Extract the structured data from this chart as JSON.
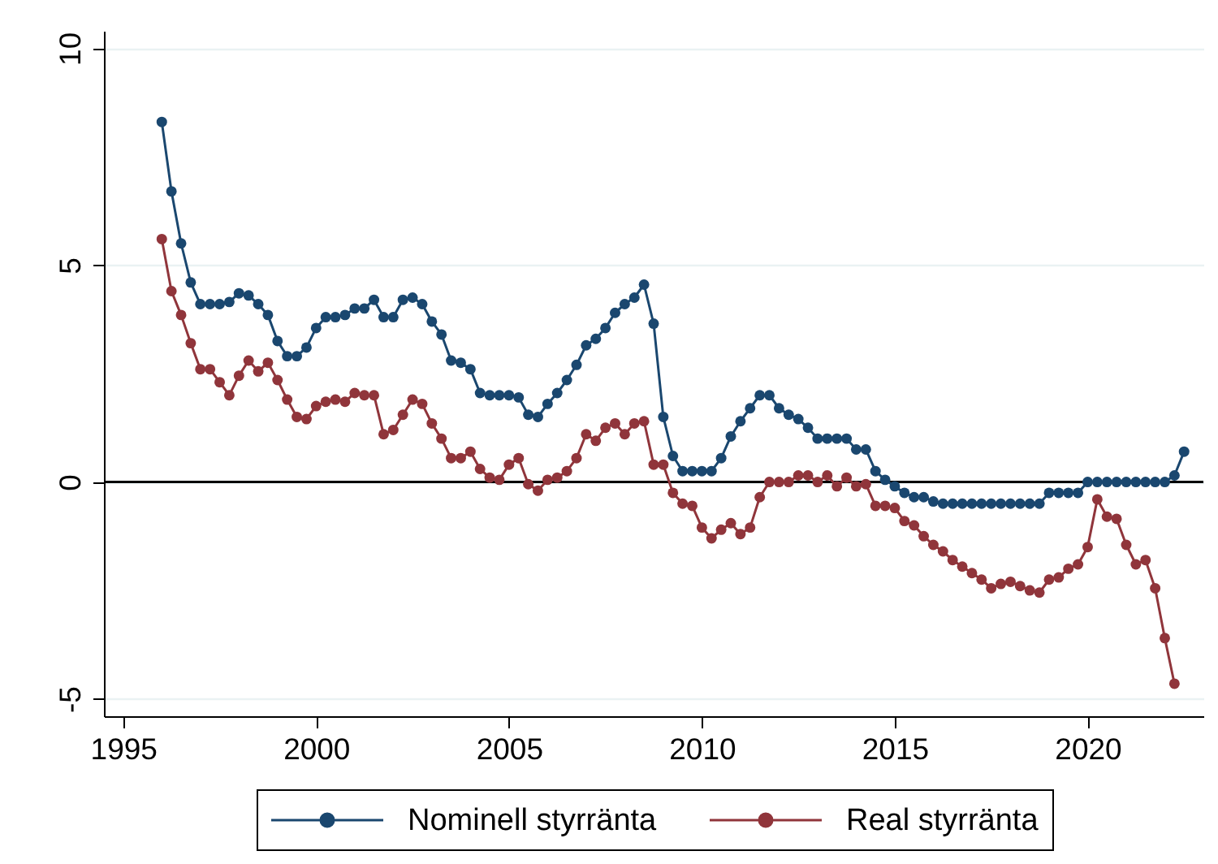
{
  "chart_data": {
    "type": "line",
    "x": [
      1996,
      1996.25,
      1996.5,
      1996.75,
      1997,
      1997.25,
      1997.5,
      1997.75,
      1998,
      1998.25,
      1998.5,
      1998.75,
      1999,
      1999.25,
      1999.5,
      1999.75,
      2000,
      2000.25,
      2000.5,
      2000.75,
      2001,
      2001.25,
      2001.5,
      2001.75,
      2002,
      2002.25,
      2002.5,
      2002.75,
      2003,
      2003.25,
      2003.5,
      2003.75,
      2004,
      2004.25,
      2004.5,
      2004.75,
      2005,
      2005.25,
      2005.5,
      2005.75,
      2006,
      2006.25,
      2006.5,
      2006.75,
      2007,
      2007.25,
      2007.5,
      2007.75,
      2008,
      2008.25,
      2008.5,
      2008.75,
      2009,
      2009.25,
      2009.5,
      2009.75,
      2010,
      2010.25,
      2010.5,
      2010.75,
      2011,
      2011.25,
      2011.5,
      2011.75,
      2012,
      2012.25,
      2012.5,
      2012.75,
      2013,
      2013.25,
      2013.5,
      2013.75,
      2014,
      2014.25,
      2014.5,
      2014.75,
      2015,
      2015.25,
      2015.5,
      2015.75,
      2016,
      2016.25,
      2016.5,
      2016.75,
      2017,
      2017.25,
      2017.5,
      2017.75,
      2018,
      2018.25,
      2018.5,
      2018.75,
      2019,
      2019.25,
      2019.5,
      2019.75,
      2020,
      2020.25,
      2020.5,
      2020.75,
      2021,
      2021.25,
      2021.5,
      2021.75,
      2022,
      2022.25,
      2022.5
    ],
    "series": [
      {
        "name": "Nominell styrränta",
        "color": "#1a476f",
        "values": [
          8.3,
          6.7,
          5.5,
          4.6,
          4.1,
          4.1,
          4.1,
          4.15,
          4.35,
          4.3,
          4.1,
          3.85,
          3.25,
          2.9,
          2.9,
          3.1,
          3.55,
          3.8,
          3.8,
          3.85,
          4.0,
          4.0,
          4.2,
          3.8,
          3.8,
          4.2,
          4.25,
          4.1,
          3.7,
          3.4,
          2.8,
          2.75,
          2.6,
          2.05,
          2.0,
          2.0,
          2.0,
          1.95,
          1.55,
          1.5,
          1.8,
          2.05,
          2.35,
          2.7,
          3.15,
          3.3,
          3.55,
          3.9,
          4.1,
          4.25,
          4.55,
          3.65,
          1.5,
          0.6,
          0.25,
          0.25,
          0.25,
          0.25,
          0.55,
          1.05,
          1.4,
          1.7,
          2.0,
          2.0,
          1.7,
          1.55,
          1.45,
          1.25,
          1.0,
          1.0,
          1.0,
          1.0,
          0.75,
          0.75,
          0.25,
          0.05,
          -0.1,
          -0.25,
          -0.35,
          -0.35,
          -0.45,
          -0.5,
          -0.5,
          -0.5,
          -0.5,
          -0.5,
          -0.5,
          -0.5,
          -0.5,
          -0.5,
          -0.5,
          -0.5,
          -0.25,
          -0.25,
          -0.25,
          -0.25,
          0,
          0,
          0,
          0,
          0,
          0,
          0,
          0,
          0,
          0.15,
          0.7
        ]
      },
      {
        "name": "Real styrränta",
        "color": "#90353b",
        "values": [
          5.6,
          4.4,
          3.85,
          3.2,
          2.6,
          2.6,
          2.3,
          2.0,
          2.45,
          2.8,
          2.55,
          2.75,
          2.35,
          1.9,
          1.5,
          1.45,
          1.75,
          1.85,
          1.9,
          1.85,
          2.05,
          2.0,
          2.0,
          1.1,
          1.2,
          1.55,
          1.9,
          1.8,
          1.35,
          1.0,
          0.55,
          0.55,
          0.7,
          0.3,
          0.1,
          0.05,
          0.4,
          0.55,
          -0.05,
          -0.2,
          0.05,
          0.1,
          0.25,
          0.55,
          1.1,
          0.95,
          1.25,
          1.35,
          1.1,
          1.35,
          1.4,
          0.4,
          0.4,
          -0.25,
          -0.5,
          -0.55,
          -1.05,
          -1.3,
          -1.1,
          -0.95,
          -1.2,
          -1.05,
          -0.35,
          0,
          0,
          0,
          0.15,
          0.15,
          0,
          0.15,
          -0.1,
          0.1,
          -0.1,
          -0.05,
          -0.55,
          -0.55,
          -0.6,
          -0.9,
          -1.0,
          -1.25,
          -1.45,
          -1.6,
          -1.8,
          -1.95,
          -2.1,
          -2.25,
          -2.45,
          -2.35,
          -2.3,
          -2.4,
          -2.5,
          -2.55,
          -2.25,
          -2.2,
          -2.0,
          -1.9,
          -1.5,
          -0.4,
          -0.8,
          -0.85,
          -1.45,
          -1.9,
          -1.8,
          -2.45,
          -3.6,
          -4.65,
          null
        ]
      }
    ],
    "xlim": [
      1994.5,
      2023
    ],
    "xticks": [
      1995,
      2000,
      2005,
      2010,
      2015,
      2020
    ],
    "ylim": [
      -5.4,
      10.4
    ],
    "yticks": [
      -5,
      0,
      5,
      10
    ],
    "grid": "y",
    "legend": "bottom",
    "marker": "circle",
    "line_style": "solid",
    "ref_lines": [
      {
        "axis": "y",
        "value": 0,
        "color": "#000000"
      }
    ]
  }
}
